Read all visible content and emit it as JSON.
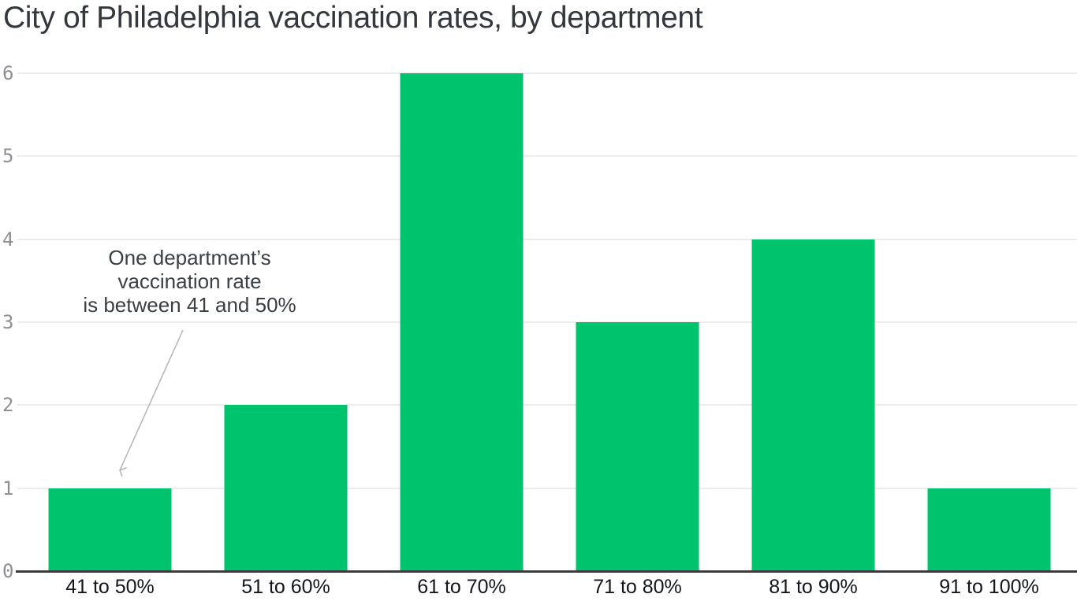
{
  "title": "City of Philadelphia vaccination rates, by department",
  "annotation": {
    "lines": [
      "One department’s",
      "vaccination rate",
      "is between 41 and 50%"
    ]
  },
  "chart_data": {
    "type": "bar",
    "title": "City of Philadelphia vaccination rates, by department",
    "categories": [
      "41 to 50%",
      "51 to 60%",
      "61 to 70%",
      "71 to 80%",
      "81 to 90%",
      "91 to 100%"
    ],
    "values": [
      1,
      2,
      6,
      3,
      4,
      1
    ],
    "xlabel": "",
    "ylabel": "",
    "ylim": [
      0,
      6
    ],
    "yticks": [
      0,
      1,
      2,
      3,
      4,
      5,
      6
    ],
    "grid": "horizontal",
    "legend": "none",
    "annotation": {
      "text": "One department’s vaccination rate is between 41 and 50%",
      "points_to_category": "41 to 50%"
    }
  },
  "colors": {
    "bar": "#00c36e",
    "gridline": "#ececec",
    "axis": "#3c3c3c",
    "title_text": "#34373c",
    "x_label_text": "#141619",
    "y_label_text": "#8f9094",
    "annotation_text": "#3b3e42",
    "arrow": "#b4b4b4",
    "background": "#ffffff"
  }
}
